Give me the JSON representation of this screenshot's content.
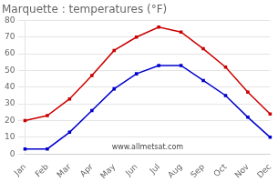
{
  "chart_data": {
    "type": "line",
    "title": "Marquette : temperatures (°F)",
    "categories": [
      "Jan",
      "Feb",
      "Mar",
      "Apr",
      "May",
      "Jun",
      "Jul",
      "Aug",
      "Sep",
      "Oct",
      "Nov",
      "Dec"
    ],
    "series": [
      {
        "color": "#cc0000",
        "marker": "square",
        "line_style": "solid",
        "values": [
          20,
          23,
          33,
          47,
          62,
          70,
          76,
          73,
          63,
          52,
          37,
          24
        ]
      },
      {
        "color": "#0000cc",
        "marker": "square",
        "line_style": "solid",
        "values": [
          3,
          3,
          13,
          26,
          39,
          48,
          53,
          53,
          44,
          35,
          22,
          10
        ]
      }
    ],
    "ylim": [
      0,
      80
    ],
    "yticks": [
      0,
      10,
      20,
      30,
      40,
      50,
      60,
      70,
      80
    ],
    "grid": "y",
    "annotation": "www.allmetsat.com"
  }
}
